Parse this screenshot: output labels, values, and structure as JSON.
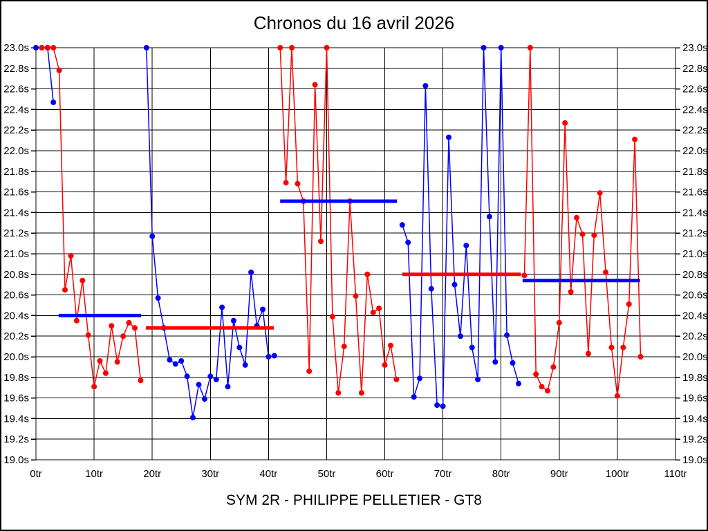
{
  "title": "Chronos du 16 avril 2026",
  "footer": "SYM 2R - PHILIPPE PELLETIER - GT8",
  "colors": {
    "red": "#ff0000",
    "blue": "#0000ff",
    "grid": "#000000",
    "text": "#000000",
    "background": "#ffffff"
  },
  "chart_data": {
    "type": "line",
    "title": "Chronos du 16 avril 2026",
    "subtitle": "SYM 2R - PHILIPPE PELLETIER - GT8",
    "xlabel": "",
    "ylabel": "",
    "x_unit": "tr",
    "y_unit": "s",
    "xlim": [
      0,
      110
    ],
    "ylim": [
      19.0,
      23.0
    ],
    "grid": true,
    "legend": "none",
    "x_ticks": [
      {
        "value": 0,
        "label": "0tr"
      },
      {
        "value": 10,
        "label": "10tr"
      },
      {
        "value": 20,
        "label": "20tr"
      },
      {
        "value": 30,
        "label": "30tr"
      },
      {
        "value": 40,
        "label": "40tr"
      },
      {
        "value": 50,
        "label": "50tr"
      },
      {
        "value": 60,
        "label": "60tr"
      },
      {
        "value": 70,
        "label": "70tr"
      },
      {
        "value": 80,
        "label": "80tr"
      },
      {
        "value": 90,
        "label": "90tr"
      },
      {
        "value": 100,
        "label": "100tr"
      },
      {
        "value": 110,
        "label": "110tr"
      }
    ],
    "y_ticks": [
      {
        "value": 23.0,
        "label": "23.0s"
      },
      {
        "value": 22.8,
        "label": "22.8s"
      },
      {
        "value": 22.6,
        "label": "22.6s"
      },
      {
        "value": 22.4,
        "label": "22.4s"
      },
      {
        "value": 22.2,
        "label": "22.2s"
      },
      {
        "value": 22.0,
        "label": "22.0s"
      },
      {
        "value": 21.8,
        "label": "21.8s"
      },
      {
        "value": 21.6,
        "label": "21.6s"
      },
      {
        "value": 21.4,
        "label": "21.4s"
      },
      {
        "value": 21.2,
        "label": "21.2s"
      },
      {
        "value": 21.0,
        "label": "21.0s"
      },
      {
        "value": 20.8,
        "label": "20.8s"
      },
      {
        "value": 20.6,
        "label": "20.6s"
      },
      {
        "value": 20.4,
        "label": "20.4s"
      },
      {
        "value": 20.2,
        "label": "20.2s"
      },
      {
        "value": 20.0,
        "label": "20.0s"
      },
      {
        "value": 19.8,
        "label": "19.8s"
      },
      {
        "value": 19.6,
        "label": "19.6s"
      },
      {
        "value": 19.4,
        "label": "19.4s"
      },
      {
        "value": 19.2,
        "label": "19.2s"
      },
      {
        "value": 19.0,
        "label": "19.0s"
      }
    ],
    "series": [
      {
        "name": "rider-blue-stint-1",
        "color_key": "blue",
        "points": [
          [
            0,
            23.0
          ],
          [
            1,
            23.0
          ],
          [
            2,
            23.0
          ],
          [
            3,
            22.47
          ]
        ]
      },
      {
        "name": "rider-red-stint-1",
        "color_key": "red",
        "points": [
          [
            1,
            23.0
          ],
          [
            2,
            23.0
          ],
          [
            3,
            23.0
          ],
          [
            4,
            22.78
          ],
          [
            5,
            20.65
          ],
          [
            6,
            20.98
          ],
          [
            7,
            20.35
          ],
          [
            8,
            20.74
          ],
          [
            9,
            20.21
          ],
          [
            10,
            19.71
          ],
          [
            11,
            19.96
          ],
          [
            12,
            19.84
          ],
          [
            13,
            20.3
          ],
          [
            14,
            19.95
          ],
          [
            15,
            20.2
          ],
          [
            16,
            20.33
          ],
          [
            17,
            20.28
          ],
          [
            18,
            19.77
          ]
        ]
      },
      {
        "name": "rider-blue-stint-2",
        "color_key": "blue",
        "points": [
          [
            19,
            23.0
          ],
          [
            20,
            21.17
          ],
          [
            21,
            20.57
          ],
          [
            22,
            20.28
          ],
          [
            23,
            19.97
          ],
          [
            24,
            19.93
          ],
          [
            25,
            19.96
          ],
          [
            26,
            19.81
          ],
          [
            27,
            19.41
          ],
          [
            28,
            19.73
          ],
          [
            29,
            19.59
          ],
          [
            30,
            19.81
          ],
          [
            31,
            19.78
          ],
          [
            32,
            20.48
          ],
          [
            33,
            19.71
          ],
          [
            34,
            20.35
          ],
          [
            35,
            20.09
          ],
          [
            36,
            19.92
          ],
          [
            37,
            20.82
          ],
          [
            38,
            20.3
          ],
          [
            39,
            20.46
          ],
          [
            40,
            20.0
          ],
          [
            41,
            20.01
          ]
        ]
      },
      {
        "name": "rider-red-stint-2",
        "color_key": "red",
        "points": [
          [
            42,
            23.0
          ],
          [
            43,
            21.69
          ],
          [
            44,
            23.0
          ],
          [
            45,
            21.68
          ],
          [
            46,
            21.51
          ],
          [
            47,
            19.86
          ],
          [
            48,
            22.64
          ],
          [
            49,
            21.12
          ],
          [
            50,
            23.0
          ],
          [
            51,
            20.39
          ],
          [
            52,
            19.65
          ],
          [
            53,
            20.1
          ],
          [
            54,
            21.51
          ],
          [
            55,
            20.59
          ],
          [
            56,
            19.65
          ],
          [
            57,
            20.8
          ],
          [
            58,
            20.43
          ],
          [
            59,
            20.47
          ],
          [
            60,
            19.92
          ],
          [
            61,
            20.11
          ],
          [
            62,
            19.78
          ]
        ]
      },
      {
        "name": "rider-blue-stint-3",
        "color_key": "blue",
        "points": [
          [
            63,
            21.28
          ],
          [
            64,
            21.11
          ],
          [
            65,
            19.61
          ],
          [
            66,
            19.79
          ],
          [
            67,
            22.63
          ],
          [
            68,
            20.66
          ],
          [
            69,
            19.53
          ],
          [
            70,
            19.52
          ],
          [
            71,
            22.13
          ],
          [
            72,
            20.7
          ],
          [
            73,
            20.2
          ],
          [
            74,
            21.08
          ],
          [
            75,
            20.09
          ],
          [
            76,
            19.78
          ],
          [
            77,
            23.0
          ],
          [
            78,
            21.36
          ],
          [
            79,
            19.95
          ],
          [
            80,
            23.0
          ],
          [
            81,
            20.21
          ],
          [
            82,
            19.94
          ],
          [
            83,
            19.74
          ]
        ]
      },
      {
        "name": "rider-red-stint-3",
        "color_key": "red",
        "points": [
          [
            84,
            20.79
          ],
          [
            85,
            23.0
          ],
          [
            86,
            19.83
          ],
          [
            87,
            19.71
          ],
          [
            88,
            19.67
          ],
          [
            89,
            19.9
          ],
          [
            90,
            20.33
          ],
          [
            91,
            22.27
          ],
          [
            92,
            20.63
          ],
          [
            93,
            21.35
          ],
          [
            94,
            21.19
          ],
          [
            95,
            20.03
          ],
          [
            96,
            21.18
          ],
          [
            97,
            21.59
          ],
          [
            98,
            20.82
          ],
          [
            99,
            20.09
          ],
          [
            100,
            19.62
          ],
          [
            101,
            20.09
          ],
          [
            102,
            20.51
          ],
          [
            103,
            22.11
          ],
          [
            104,
            20.0
          ]
        ]
      }
    ],
    "average_bars": [
      {
        "name": "stint-1-average",
        "color_key": "blue",
        "x_from": 3.9,
        "x_to": 18.1,
        "value": 20.4
      },
      {
        "name": "stint-2-average",
        "color_key": "red",
        "x_from": 18.9,
        "x_to": 40.9,
        "value": 20.28
      },
      {
        "name": "stint-3-average",
        "color_key": "blue",
        "x_from": 42.0,
        "x_to": 62.1,
        "value": 21.51
      },
      {
        "name": "stint-4-average",
        "color_key": "red",
        "x_from": 63.0,
        "x_to": 83.4,
        "value": 20.8
      },
      {
        "name": "stint-5-average",
        "color_key": "blue",
        "x_from": 83.7,
        "x_to": 103.9,
        "value": 20.74
      }
    ]
  }
}
